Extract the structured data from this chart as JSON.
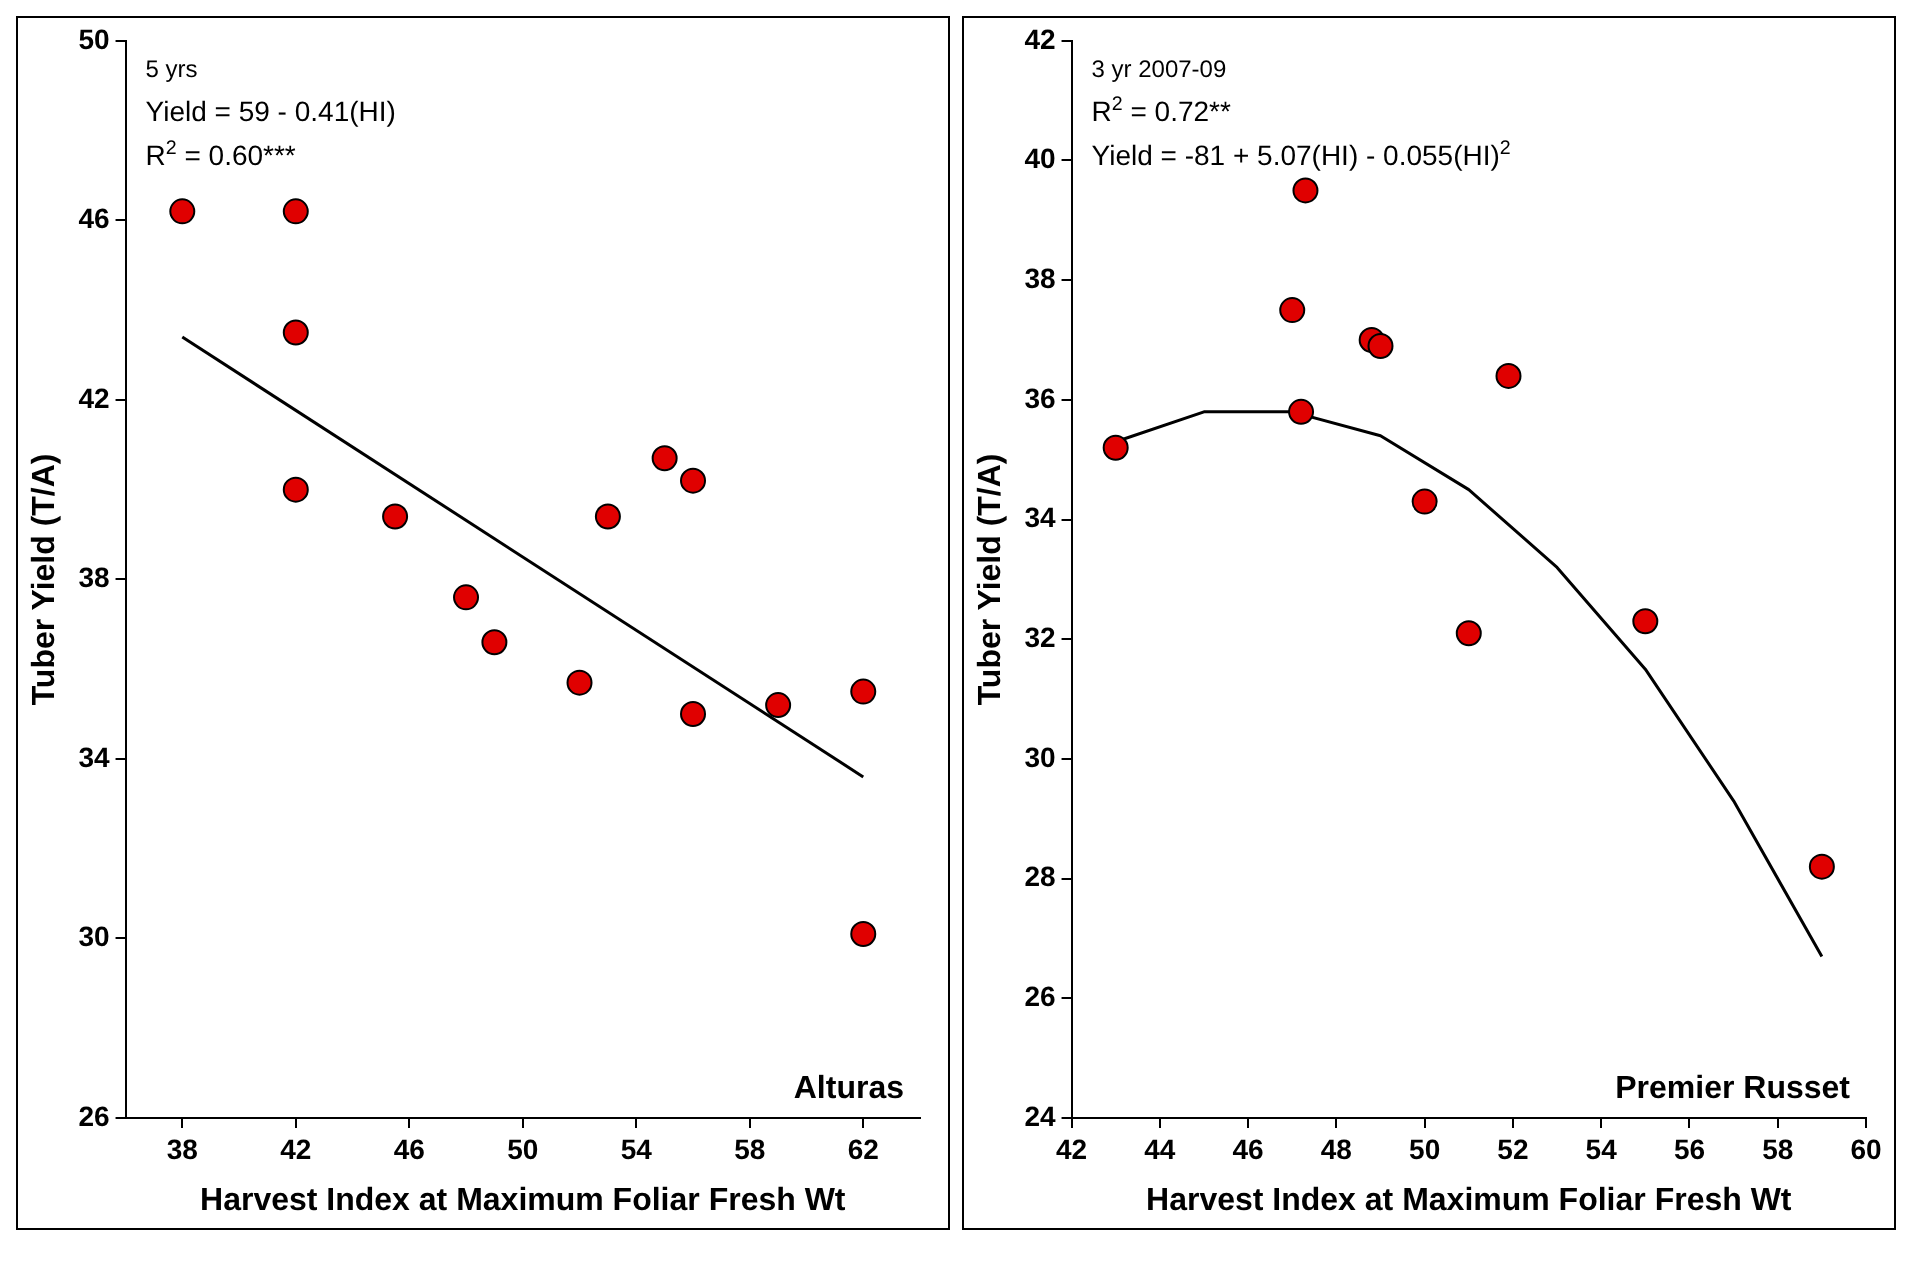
{
  "chart_data": [
    {
      "type": "scatter",
      "title": "Alturas",
      "xlabel": "Harvest Index at Maximum Foliar Fresh Wt",
      "ylabel": "Tuber Yield (T/A)",
      "xlim": [
        36,
        64
      ],
      "xticks": [
        38,
        42,
        46,
        50,
        54,
        58,
        62
      ],
      "ylim": [
        26,
        50
      ],
      "yticks": [
        26,
        30,
        34,
        38,
        42,
        46,
        50
      ],
      "grid": false,
      "legend": false,
      "marker": "circle",
      "annotations": [
        "5 yrs",
        "Yield = 59 - 0.41(HI)",
        "R$^{2}$ = 0.60***"
      ],
      "series": [
        {
          "color": "#e00000",
          "x": [
            38,
            42,
            42,
            42,
            45.5,
            48,
            49,
            52,
            53,
            55,
            56,
            56,
            59,
            62,
            62
          ],
          "values": [
            46.2,
            43.5,
            46.2,
            40,
            39.4,
            37.6,
            36.6,
            35.7,
            39.4,
            40.7,
            40.2,
            35,
            35.2,
            35.5,
            30.1
          ]
        },
        {
          "type": "line",
          "color": "#000000",
          "marker": "none",
          "x": [
            38,
            62
          ],
          "values": [
            43.4,
            33.6
          ]
        }
      ]
    },
    {
      "type": "scatter",
      "title": "Premier Russet",
      "xlabel": "Harvest Index at Maximum Foliar Fresh Wt",
      "ylabel": "Tuber Yield (T/A)",
      "xlim": [
        42,
        60
      ],
      "xticks": [
        42,
        44,
        46,
        48,
        50,
        52,
        54,
        56,
        58,
        60
      ],
      "ylim": [
        24,
        42
      ],
      "yticks": [
        24,
        26,
        28,
        30,
        32,
        34,
        36,
        38,
        40,
        42
      ],
      "grid": false,
      "legend": false,
      "marker": "circle",
      "annotations": [
        "3 yr 2007-09",
        "R$^{2}$ = 0.72**",
        "Yield = -81 + 5.07(HI) - 0.055(HI)$^{2}$"
      ],
      "series": [
        {
          "color": "#e00000",
          "x": [
            43,
            47.2,
            47,
            47.3,
            48.8,
            49,
            50,
            51,
            51.9,
            55,
            59
          ],
          "values": [
            35.2,
            35.8,
            37.5,
            39.5,
            37,
            36.9,
            34.3,
            32.1,
            36.4,
            32.3,
            28.2
          ]
        },
        {
          "type": "line",
          "color": "#000000",
          "marker": "none",
          "x": [
            43,
            45,
            47,
            49,
            51,
            53,
            55,
            57,
            59
          ],
          "values": [
            35.3,
            35.8,
            35.8,
            35.4,
            34.5,
            33.2,
            31.5,
            29.3,
            26.7
          ]
        }
      ]
    }
  ]
}
